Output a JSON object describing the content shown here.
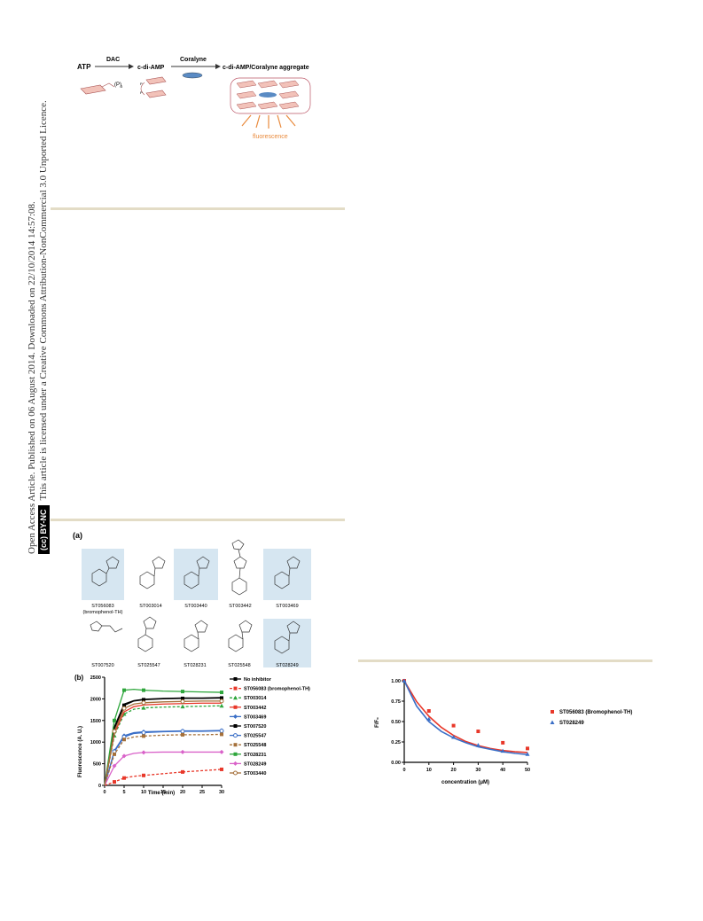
{
  "sidebar": {
    "line1": "Open Access Article. Published on 06 August 2014. Downloaded on 22/10/2014 14:57:08.",
    "badge": "BY-NC",
    "line2": "This article is licensed under a Creative Commons Attribution-NonCommercial 3.0 Unported Licence."
  },
  "scheme": {
    "labels": [
      "ATP",
      "DAC",
      "c-di-AMP",
      "Coralyne",
      "c-di-AMP/Coralyne aggregate",
      "(P)",
      "3",
      "P",
      "P",
      "fluorescence"
    ]
  },
  "panel_a": {
    "label": "(a)",
    "compounds": [
      "ST056083",
      "(bromophenol-TH)",
      "ST003014",
      "ST003440",
      "ST003442",
      "ST003469",
      "ST007520",
      "ST025547",
      "ST028231",
      "ST025548",
      "ST028249"
    ]
  },
  "chart_data": [
    {
      "type": "line",
      "panel_label": "(b)",
      "xlabel": "Time (min)",
      "ylabel": "Fluorescence (A. U.)",
      "xlim": [
        0,
        30
      ],
      "ylim": [
        0,
        2500
      ],
      "xticks": [
        0,
        5,
        10,
        15,
        20,
        25,
        30
      ],
      "yticks": [
        0,
        500,
        1000,
        1500,
        2000,
        2500
      ],
      "legend_position": "right",
      "x": [
        0,
        2.5,
        5,
        7.5,
        10,
        15,
        20,
        25,
        30
      ],
      "series": [
        {
          "name": "No inhibitor",
          "color": "#000000",
          "marker": "square",
          "dash": false,
          "values": [
            0,
            1300,
            1850,
            1950,
            1980,
            2000,
            2010,
            2010,
            2020
          ]
        },
        {
          "name": "ST056083 (bromophenol-TH)",
          "color": "#e8382a",
          "marker": "square",
          "dash": true,
          "values": [
            0,
            80,
            170,
            210,
            230,
            270,
            310,
            340,
            370
          ]
        },
        {
          "name": "ST003014",
          "color": "#2ea63c",
          "marker": "triangle",
          "dash": true,
          "values": [
            0,
            1150,
            1650,
            1760,
            1790,
            1810,
            1820,
            1830,
            1840
          ]
        },
        {
          "name": "ST003442",
          "color": "#e8382a",
          "marker": "none",
          "dash": false,
          "values": [
            0,
            1200,
            1700,
            1820,
            1860,
            1880,
            1890,
            1900,
            1900
          ]
        },
        {
          "name": "ST003469",
          "color": "#3b6fc7",
          "marker": "diamond",
          "dash": false,
          "values": [
            0,
            800,
            1150,
            1220,
            1240,
            1250,
            1260,
            1260,
            1270
          ]
        },
        {
          "name": "ST007520",
          "color": "#000000",
          "marker": "none",
          "dash": false,
          "values": [
            0,
            1350,
            1880,
            1960,
            1990,
            2010,
            2020,
            2020,
            2030
          ]
        },
        {
          "name": "ST025547",
          "color": "#3b6fc7",
          "marker": "circle",
          "dash": false,
          "values": [
            0,
            780,
            1120,
            1200,
            1220,
            1240,
            1250,
            1250,
            1260
          ]
        },
        {
          "name": "ST025548",
          "color": "#a5703a",
          "marker": "square",
          "dash": true,
          "values": [
            0,
            720,
            1060,
            1120,
            1140,
            1160,
            1170,
            1170,
            1180
          ]
        },
        {
          "name": "ST028231",
          "color": "#2ea63c",
          "marker": "square",
          "dash": false,
          "values": [
            0,
            1500,
            2200,
            2220,
            2200,
            2180,
            2170,
            2160,
            2150
          ]
        },
        {
          "name": "ST028249",
          "color": "#d962c9",
          "marker": "diamond",
          "dash": false,
          "values": [
            0,
            450,
            680,
            740,
            760,
            770,
            770,
            770,
            770
          ]
        },
        {
          "name": "ST003440",
          "color": "#a5703a",
          "marker": "circle",
          "dash": false,
          "values": [
            0,
            1250,
            1780,
            1880,
            1910,
            1930,
            1940,
            1950,
            1950
          ]
        }
      ]
    },
    {
      "type": "scatter",
      "xlabel": "concentration (μM)",
      "ylabel": "F/F₀",
      "xlim": [
        0,
        50
      ],
      "ylim": [
        0,
        1.0
      ],
      "xticks": [
        0,
        10,
        20,
        30,
        40,
        50
      ],
      "yticks": [
        "0.00",
        "0.25",
        "0.50",
        "0.75",
        "1.00"
      ],
      "legend_position": "right",
      "series": [
        {
          "name": "ST056083 (Bromophenol-TH)",
          "color": "#e8382a",
          "marker": "square",
          "points": [
            [
              0,
              1.0
            ],
            [
              10,
              0.63
            ],
            [
              20,
              0.45
            ],
            [
              30,
              0.38
            ],
            [
              40,
              0.24
            ],
            [
              50,
              0.17
            ]
          ],
          "fit": [
            1.0,
            0.745,
            0.565,
            0.43,
            0.33,
            0.255,
            0.205,
            0.17,
            0.145,
            0.13,
            0.12
          ]
        },
        {
          "name": "ST028249",
          "color": "#3b6fc7",
          "marker": "triangle",
          "points": [
            [
              0,
              1.0
            ],
            [
              10,
              0.53
            ],
            [
              20,
              0.31
            ],
            [
              30,
              0.21
            ],
            [
              40,
              0.14
            ],
            [
              50,
              0.1
            ]
          ],
          "fit": [
            1.0,
            0.69,
            0.5,
            0.38,
            0.3,
            0.24,
            0.19,
            0.16,
            0.13,
            0.11,
            0.095
          ]
        }
      ]
    }
  ]
}
